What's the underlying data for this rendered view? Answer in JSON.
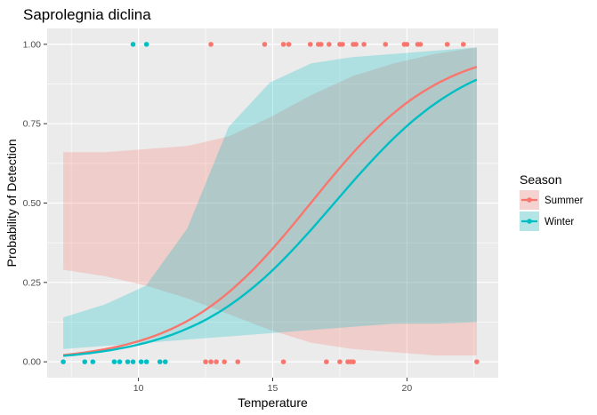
{
  "chart_data": {
    "type": "scatter",
    "title": "Saprolegnia diclina",
    "xlabel": "Temperature",
    "ylabel": "Probability of Detection",
    "xlim": [
      6.6,
      23.4
    ],
    "ylim": [
      -0.05,
      1.05
    ],
    "xticks": [
      10,
      15,
      20
    ],
    "yticks": [
      0.0,
      0.25,
      0.5,
      0.75,
      1.0
    ],
    "ytick_labels": [
      "0.00",
      "0.25",
      "0.50",
      "0.75",
      "1.00"
    ],
    "grid": true,
    "legend": {
      "title": "Season",
      "position": "right"
    },
    "series": [
      {
        "name": "Summer",
        "color": "#F8766D",
        "fit_x_range": [
          7.2,
          22.6
        ],
        "fit_logit": {
          "intercept": -6.83,
          "slope": 0.416
        },
        "ci_lower": [
          0.29,
          0.27,
          0.24,
          0.2,
          0.15,
          0.1,
          0.06,
          0.04,
          0.03,
          0.02,
          0.02
        ],
        "ci_upper": [
          0.66,
          0.66,
          0.67,
          0.68,
          0.71,
          0.77,
          0.84,
          0.9,
          0.94,
          0.97,
          0.99
        ],
        "points": [
          {
            "x": 12.5,
            "y": 0
          },
          {
            "x": 12.7,
            "y": 0
          },
          {
            "x": 12.9,
            "y": 0
          },
          {
            "x": 13.2,
            "y": 0
          },
          {
            "x": 13.7,
            "y": 0
          },
          {
            "x": 15.4,
            "y": 0
          },
          {
            "x": 17.0,
            "y": 0
          },
          {
            "x": 17.5,
            "y": 0
          },
          {
            "x": 17.8,
            "y": 0
          },
          {
            "x": 17.9,
            "y": 0
          },
          {
            "x": 18.0,
            "y": 0
          },
          {
            "x": 22.6,
            "y": 0
          },
          {
            "x": 12.7,
            "y": 1
          },
          {
            "x": 14.7,
            "y": 1
          },
          {
            "x": 15.4,
            "y": 1
          },
          {
            "x": 15.6,
            "y": 1
          },
          {
            "x": 16.4,
            "y": 1
          },
          {
            "x": 16.7,
            "y": 1
          },
          {
            "x": 16.8,
            "y": 1
          },
          {
            "x": 17.1,
            "y": 1
          },
          {
            "x": 17.5,
            "y": 1
          },
          {
            "x": 17.6,
            "y": 1
          },
          {
            "x": 18.0,
            "y": 1
          },
          {
            "x": 18.1,
            "y": 1
          },
          {
            "x": 18.4,
            "y": 1
          },
          {
            "x": 19.2,
            "y": 1
          },
          {
            "x": 19.9,
            "y": 1
          },
          {
            "x": 20.0,
            "y": 1
          },
          {
            "x": 20.4,
            "y": 1
          },
          {
            "x": 20.5,
            "y": 1
          },
          {
            "x": 21.5,
            "y": 1
          },
          {
            "x": 22.1,
            "y": 1
          }
        ]
      },
      {
        "name": "Winter",
        "color": "#00BFC4",
        "fit_x_range": [
          7.2,
          22.6
        ],
        "fit_logit": {
          "intercept": -6.78,
          "slope": 0.392
        },
        "ci_lower": [
          0.01,
          0.01,
          0.02,
          0.03,
          0.06,
          0.18,
          0.33,
          0.45,
          0.54,
          0.6,
          0.65
        ],
        "ci_upper": [
          0.14,
          0.18,
          0.24,
          0.42,
          0.74,
          0.88,
          0.94,
          0.96,
          0.97,
          0.98,
          0.99
        ],
        "ci_lower_extended": [
          0.04,
          0.05,
          0.06,
          0.07,
          0.08,
          0.09,
          0.1,
          0.11,
          0.12,
          0.12,
          0.125
        ],
        "points": [
          {
            "x": 7.2,
            "y": 0
          },
          {
            "x": 8.0,
            "y": 0
          },
          {
            "x": 8.3,
            "y": 0
          },
          {
            "x": 9.1,
            "y": 0
          },
          {
            "x": 9.3,
            "y": 0
          },
          {
            "x": 9.6,
            "y": 0
          },
          {
            "x": 9.8,
            "y": 0
          },
          {
            "x": 10.1,
            "y": 0
          },
          {
            "x": 10.3,
            "y": 0
          },
          {
            "x": 10.8,
            "y": 0
          },
          {
            "x": 11.0,
            "y": 0
          },
          {
            "x": 9.8,
            "y": 1
          },
          {
            "x": 10.3,
            "y": 1
          }
        ]
      }
    ]
  }
}
